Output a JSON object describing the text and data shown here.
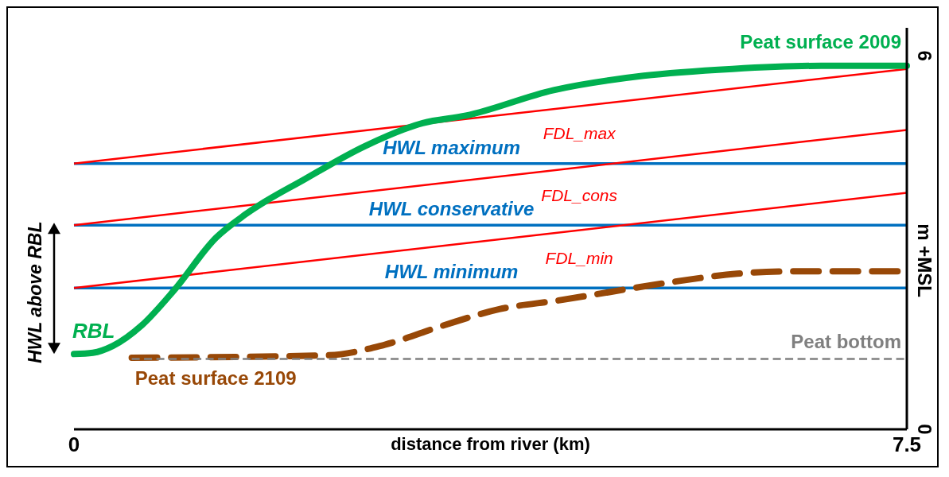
{
  "chart_data": {
    "type": "line",
    "xlabel": "distance from river (km)",
    "ylabel": "m +MSL",
    "xlim": [
      0,
      7.5
    ],
    "xticks": [
      0,
      7.5
    ],
    "ylim": [
      0,
      6.45
    ],
    "yticks": [
      0,
      6
    ],
    "grid": false,
    "series": [
      {
        "name": "Peat  surface 2009",
        "color": "#00b050",
        "x": [
          0,
          0.17,
          0.35,
          0.61,
          0.9,
          1.28,
          1.55,
          2.08,
          2.62,
          3.14,
          3.53,
          4.32,
          5.13,
          5.93,
          6.73,
          7.5
        ],
        "values": [
          1.21,
          1.23,
          1.34,
          1.67,
          2.23,
          3.08,
          3.46,
          4.02,
          4.55,
          4.92,
          5.04,
          5.45,
          5.68,
          5.79,
          5.84,
          5.84
        ]
      },
      {
        "name": "HWL  maximum",
        "color": "#0070c0",
        "x": [
          0,
          7.5
        ],
        "values": [
          4.27,
          4.27
        ]
      },
      {
        "name": "HWL  conservative",
        "color": "#0070c0",
        "x": [
          0,
          7.5
        ],
        "values": [
          3.28,
          3.28
        ]
      },
      {
        "name": "HWL  minimum",
        "color": "#0070c0",
        "x": [
          0,
          7.5
        ],
        "values": [
          2.27,
          2.27
        ]
      },
      {
        "name": "FDL_max",
        "color": "#ff0000",
        "x": [
          0,
          7.5
        ],
        "values": [
          4.27,
          5.79
        ]
      },
      {
        "name": "FDL_cons",
        "color": "#ff0000",
        "x": [
          0,
          7.5
        ],
        "values": [
          3.28,
          4.81
        ]
      },
      {
        "name": "FDL_min",
        "color": "#ff0000",
        "x": [
          0,
          7.5
        ],
        "values": [
          2.27,
          3.8
        ]
      },
      {
        "name": "Peat bottom",
        "color": "#808080",
        "line_style": "dashed",
        "x": [
          0.52,
          7.5
        ],
        "values": [
          1.13,
          1.13
        ]
      },
      {
        "name": "Peat surface 2109",
        "color": "#984807",
        "line_style": "dashed",
        "x": [
          0.52,
          2.29,
          2.8,
          3.33,
          3.83,
          4.36,
          5.44,
          5.97,
          6.56,
          7.5
        ],
        "values": [
          1.15,
          1.19,
          1.36,
          1.67,
          1.93,
          2.07,
          2.38,
          2.5,
          2.54,
          2.54
        ]
      }
    ],
    "annotations": [
      {
        "text": "RBL",
        "x": 0,
        "y": 1.21
      },
      "HWL above RBL"
    ]
  }
}
